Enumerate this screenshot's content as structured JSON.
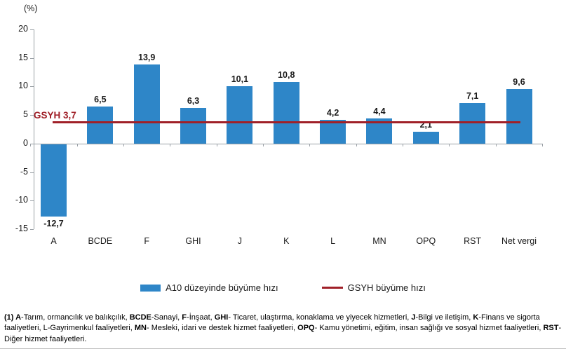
{
  "chart_data": {
    "type": "bar",
    "title": "",
    "unit_label": "(%)",
    "categories": [
      "A",
      "BCDE",
      "F",
      "GHI",
      "J",
      "K",
      "L",
      "MN",
      "OPQ",
      "RST",
      "Net vergi"
    ],
    "values": [
      -12.7,
      6.5,
      13.9,
      6.3,
      10.1,
      10.8,
      4.2,
      4.4,
      2.1,
      7.1,
      9.6
    ],
    "value_labels": [
      "-12,7",
      "6,5",
      "13,9",
      "6,3",
      "10,1",
      "10,8",
      "4,2",
      "4,4",
      "2,1",
      "7,1",
      "9,6"
    ],
    "decimal_separator": ",",
    "bar_color": "#2e86c8",
    "ylim": [
      -15,
      20
    ],
    "yticks": [
      20,
      15,
      10,
      5,
      0,
      -5,
      -10,
      -15
    ],
    "grid": false,
    "xlabel": "",
    "ylabel": "(%)",
    "reference_line": {
      "value": 3.7,
      "label": "GSYH 3,7",
      "color": "#a02028"
    },
    "legend": {
      "position": "bottom",
      "entries": [
        {
          "label": "A10 düzeyinde büyüme hızı",
          "type": "bar",
          "color": "#2e86c8"
        },
        {
          "label": "GSYH büyüme hızı",
          "type": "line",
          "color": "#a02028"
        }
      ]
    }
  },
  "footnote": {
    "segments": [
      {
        "text": "(1) A",
        "bold": true
      },
      {
        "text": "-Tarım, ormancılık ve balıkçılık, ",
        "bold": false
      },
      {
        "text": "BCDE",
        "bold": true
      },
      {
        "text": "-Sanayi, ",
        "bold": false
      },
      {
        "text": "F",
        "bold": true
      },
      {
        "text": "-İnşaat, ",
        "bold": false
      },
      {
        "text": "GHI",
        "bold": true
      },
      {
        "text": "- Ticaret, ulaştırma, konaklama ve yiyecek hizmetleri, ",
        "bold": false
      },
      {
        "text": "J",
        "bold": true
      },
      {
        "text": "-Bilgi ve iletişim, ",
        "bold": false
      },
      {
        "text": "K",
        "bold": true
      },
      {
        "text": "-Finans ve sigorta faaliyetleri, L-Gayrimenkul faaliyetleri, ",
        "bold": false
      },
      {
        "text": "MN",
        "bold": true
      },
      {
        "text": "- Mesleki, idari ve destek hizmet faaliyetleri, ",
        "bold": false
      },
      {
        "text": "OPQ",
        "bold": true
      },
      {
        "text": "- Kamu yönetimi, eğitim, insan sağlığı ve sosyal hizmet faaliyetleri, ",
        "bold": false
      },
      {
        "text": "RST",
        "bold": true
      },
      {
        "text": "- Diğer hizmet faaliyetleri.",
        "bold": false
      }
    ]
  }
}
